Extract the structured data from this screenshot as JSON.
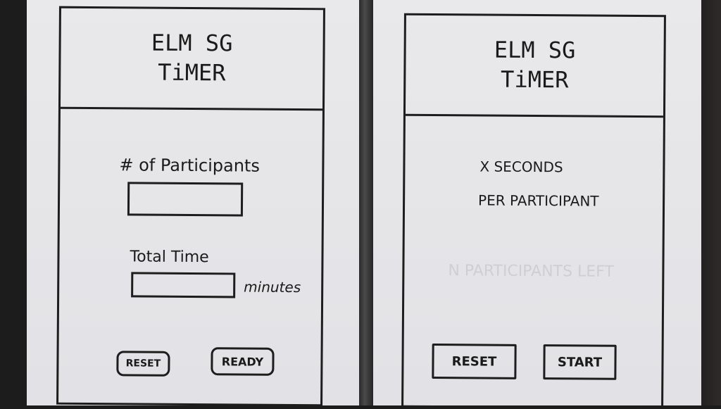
{
  "left_screen": {
    "title_line1": "ELM SG",
    "title_line2": "TiMER",
    "participants_label": "# of Participants",
    "participants_value": "",
    "total_time_label": "Total Time",
    "total_time_value": "",
    "total_time_unit": "minutes",
    "reset_label": "RESET",
    "ready_label": "READY"
  },
  "right_screen": {
    "title_line1": "ELM SG",
    "title_line2": "TiMER",
    "seconds_text": "X SECONDS",
    "per_participant_text": "PER PARTICIPANT",
    "participants_left_text": "N PARTICIPANTS LEFT",
    "reset_label": "RESET",
    "start_label": "START"
  }
}
